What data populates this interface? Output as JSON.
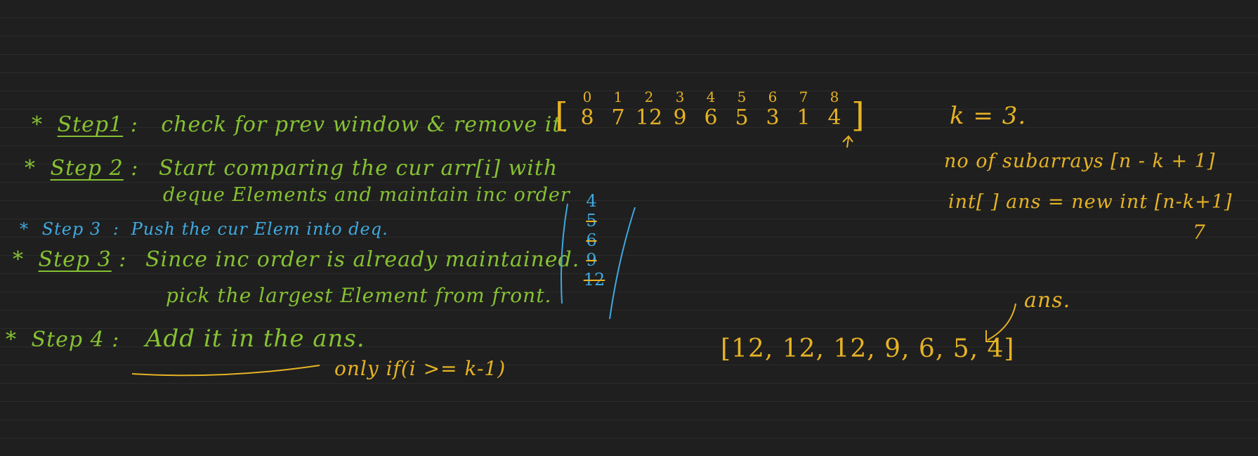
{
  "steps": [
    {
      "star": "*",
      "label": "Step1",
      "sep": ":",
      "text": "check for prev window & remove it."
    },
    {
      "star": "*",
      "label": "Step 2",
      "sep": ":",
      "text": "Start comparing the cur arr[i] with",
      "text2": "deque Elements and maintain inc order"
    },
    {
      "star": "*",
      "label": "Step 3",
      "sep": ":",
      "text": "Push the cur Elem into deq."
    },
    {
      "star": "*",
      "label": "Step 3",
      "sep": ":",
      "text": "Since inc order is already maintained.",
      "text2": "pick the largest Element from front."
    },
    {
      "star": "*",
      "label": "Step 4",
      "sep": ":",
      "text": "Add it in the ans."
    }
  ],
  "condition": "only if(i >= k-1)",
  "array": {
    "indices": [
      "0",
      "1",
      "2",
      "3",
      "4",
      "5",
      "6",
      "7",
      "8"
    ],
    "values": [
      "8",
      "7",
      "12",
      "9",
      "6",
      "5",
      "3",
      "1",
      "4"
    ],
    "open": "[",
    "close": "]"
  },
  "deque": [
    "4",
    "5",
    "6",
    "9",
    "12"
  ],
  "k_label": "k = 3.",
  "subarrays_label": "no of subarrays [n - k + 1]",
  "ans_decl": "int[ ] ans = new int [n-k+1]",
  "ans_size": "7",
  "ans_label": "ans.",
  "ans_result": "[12, 12, 12, 9, 6, 5, 4]",
  "colors": {
    "green": "#86c232",
    "blue": "#3fa9e0",
    "yellow": "#e6b325",
    "background": "#1f1f1f"
  }
}
